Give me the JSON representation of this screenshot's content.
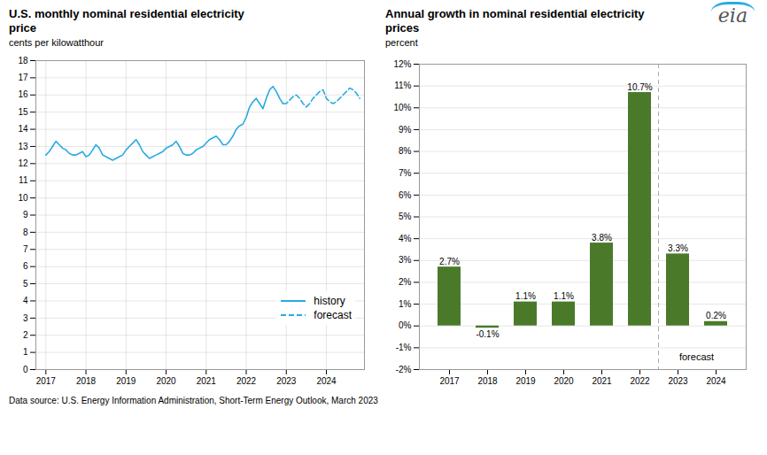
{
  "chart_data": [
    {
      "type": "line",
      "title": "U.S. monthly nominal residential electricity price",
      "subtitle": "cents per kilowatthour",
      "series": [
        {
          "name": "history",
          "color": "#29abe2",
          "line_style": "solid",
          "x": [
            2017.0,
            2017.083,
            2017.167,
            2017.25,
            2017.333,
            2017.417,
            2017.5,
            2017.583,
            2017.667,
            2017.75,
            2017.833,
            2017.917,
            2018.0,
            2018.083,
            2018.167,
            2018.25,
            2018.333,
            2018.417,
            2018.5,
            2018.583,
            2018.667,
            2018.75,
            2018.833,
            2018.917,
            2019.0,
            2019.083,
            2019.167,
            2019.25,
            2019.333,
            2019.417,
            2019.5,
            2019.583,
            2019.667,
            2019.75,
            2019.833,
            2019.917,
            2020.0,
            2020.083,
            2020.167,
            2020.25,
            2020.333,
            2020.417,
            2020.5,
            2020.583,
            2020.667,
            2020.75,
            2020.833,
            2020.917,
            2021.0,
            2021.083,
            2021.167,
            2021.25,
            2021.333,
            2021.417,
            2021.5,
            2021.583,
            2021.667,
            2021.75,
            2021.833,
            2021.917,
            2022.0,
            2022.083,
            2022.167,
            2022.25,
            2022.333,
            2022.417,
            2022.5,
            2022.583,
            2022.667,
            2022.75,
            2022.833,
            2022.917
          ],
          "values": [
            12.5,
            12.7,
            13.0,
            13.3,
            13.1,
            12.9,
            12.8,
            12.6,
            12.5,
            12.5,
            12.6,
            12.7,
            12.4,
            12.5,
            12.8,
            13.1,
            12.9,
            12.5,
            12.4,
            12.3,
            12.2,
            12.3,
            12.4,
            12.5,
            12.8,
            13.0,
            13.2,
            13.4,
            13.1,
            12.7,
            12.5,
            12.3,
            12.4,
            12.5,
            12.6,
            12.7,
            12.9,
            13.0,
            13.1,
            13.3,
            13.0,
            12.6,
            12.5,
            12.5,
            12.6,
            12.8,
            12.9,
            13.0,
            13.2,
            13.4,
            13.5,
            13.6,
            13.4,
            13.1,
            13.1,
            13.3,
            13.6,
            14.0,
            14.2,
            14.3,
            14.7,
            15.3,
            15.6,
            15.8,
            15.5,
            15.2,
            15.8,
            16.3,
            16.5,
            16.2,
            15.8,
            15.5
          ]
        },
        {
          "name": "forecast",
          "color": "#29abe2",
          "line_style": "dashed",
          "x": [
            2022.917,
            2023.0,
            2023.083,
            2023.167,
            2023.25,
            2023.333,
            2023.417,
            2023.5,
            2023.583,
            2023.667,
            2023.75,
            2023.833,
            2023.917,
            2024.0,
            2024.083,
            2024.167,
            2024.25,
            2024.333,
            2024.417,
            2024.5,
            2024.583,
            2024.667,
            2024.75,
            2024.833
          ],
          "values": [
            15.5,
            15.5,
            15.7,
            15.9,
            16.0,
            15.8,
            15.5,
            15.3,
            15.5,
            15.8,
            16.0,
            16.2,
            16.3,
            15.8,
            15.6,
            15.5,
            15.6,
            15.8,
            16.0,
            16.2,
            16.4,
            16.3,
            16.1,
            15.8
          ]
        }
      ],
      "xlim": [
        2016.75,
        2024.95
      ],
      "xticks": [
        2017,
        2018,
        2019,
        2020,
        2021,
        2022,
        2023,
        2024
      ],
      "ylim": [
        0,
        18
      ],
      "yticks": [
        0,
        1,
        2,
        3,
        4,
        5,
        6,
        7,
        8,
        9,
        10,
        11,
        12,
        13,
        14,
        15,
        16,
        17,
        18
      ],
      "grid": true,
      "legend": "lower right"
    },
    {
      "type": "bar",
      "title": "Annual growth in nominal residential electricity prices",
      "subtitle": "percent",
      "categories": [
        "2017",
        "2018",
        "2019",
        "2020",
        "2021",
        "2022",
        "2023",
        "2024"
      ],
      "values": [
        2.7,
        -0.1,
        1.1,
        1.1,
        3.8,
        10.7,
        3.3,
        0.2
      ],
      "value_labels": [
        "2.7%",
        "-0.1%",
        "1.1%",
        "1.1%",
        "3.8%",
        "10.7%",
        "3.3%",
        "0.2%"
      ],
      "data_labels": true,
      "color": "#4a7a29",
      "ylim": [
        -2,
        12
      ],
      "yticks": [
        {
          "value": -2,
          "label": "-2%"
        },
        {
          "value": -1,
          "label": "-1%"
        },
        {
          "value": 0,
          "label": "0%"
        },
        {
          "value": 1,
          "label": "1%"
        },
        {
          "value": 2,
          "label": "2%"
        },
        {
          "value": 3,
          "label": "3%"
        },
        {
          "value": 4,
          "label": "4%"
        },
        {
          "value": 5,
          "label": "5%"
        },
        {
          "value": 6,
          "label": "6%"
        },
        {
          "value": 7,
          "label": "7%"
        },
        {
          "value": 8,
          "label": "8%"
        },
        {
          "value": 9,
          "label": "9%"
        },
        {
          "value": 10,
          "label": "10%"
        },
        {
          "value": 11,
          "label": "11%"
        },
        {
          "value": 12,
          "label": "12%"
        }
      ],
      "grid": "y",
      "annotations": [
        {
          "text": "forecast",
          "x": [
            "2023",
            "2024"
          ]
        }
      ]
    }
  ],
  "footer": "Data source: U.S. Energy Information Administration, Short-Term Energy Outlook, March 2023",
  "logo": "eia"
}
